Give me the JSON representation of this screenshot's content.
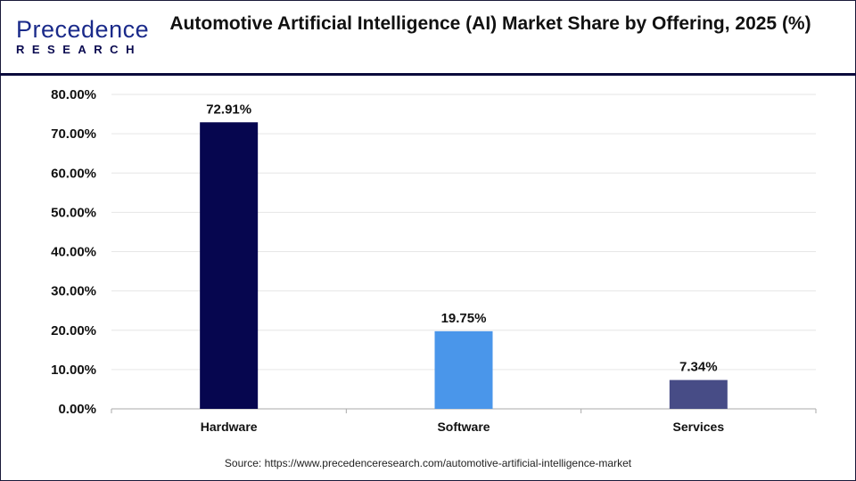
{
  "logo": {
    "line1": "Precedence",
    "line2": "RESEARCH"
  },
  "title": "Automotive Artificial Intelligence (AI) Market Share by Offering, 2025 (%)",
  "source": "Source: https://www.precedenceresearch.com/automotive-artificial-intelligence-market",
  "chart_data": {
    "type": "bar",
    "title": "Automotive Artificial Intelligence (AI) Market Share by Offering, 2025 (%)",
    "categories": [
      "Hardware",
      "Software",
      "Services"
    ],
    "values": [
      72.91,
      19.75,
      7.34
    ],
    "data_labels": [
      "72.91%",
      "19.75%",
      "7.34%"
    ],
    "colors": [
      "#06064f",
      "#4a96ea",
      "#474c86"
    ],
    "yticks": [
      "0.00%",
      "10.00%",
      "20.00%",
      "30.00%",
      "40.00%",
      "50.00%",
      "60.00%",
      "70.00%",
      "80.00%"
    ],
    "ylim": [
      0,
      80
    ],
    "grid": true,
    "xlabel": "",
    "ylabel": ""
  }
}
